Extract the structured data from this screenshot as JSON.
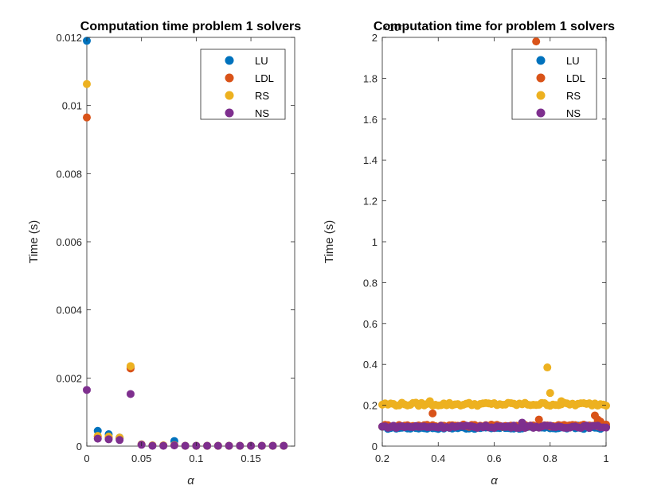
{
  "chart_data": [
    {
      "type": "scatter",
      "title": "Computation time problem 1 solvers",
      "xlabel": "α",
      "ylabel": "Time (s)",
      "xlim": [
        0,
        0.19
      ],
      "ylim": [
        0,
        0.012
      ],
      "xticks": [
        0,
        0.05,
        0.1,
        0.15
      ],
      "xtick_labels": [
        "0",
        "0.05",
        "0.1",
        "0.15"
      ],
      "yticks": [
        0,
        0.002,
        0.004,
        0.006,
        0.008,
        0.01,
        0.012
      ],
      "ytick_labels": [
        "0",
        "0.002",
        "0.004",
        "0.006",
        "0.008",
        "0.01",
        "0.012"
      ],
      "legend_position": "top-right",
      "grid": false,
      "x": [
        0,
        0.01,
        0.02,
        0.03,
        0.04,
        0.05,
        0.06,
        0.07,
        0.08,
        0.09,
        0.1,
        0.11,
        0.12,
        0.13,
        0.14,
        0.15,
        0.16,
        0.17,
        0.18
      ],
      "series": [
        {
          "name": "LU",
          "color": "#0072BD",
          "values": [
            0.0119,
            0.00045,
            0.00035,
            0.00025,
            0.00233,
            5e-05,
            2e-05,
            2e-05,
            0.00015,
            1e-05,
            1e-05,
            1e-05,
            1e-05,
            1e-05,
            1e-05,
            1e-05,
            1e-05,
            1e-05,
            1e-05
          ]
        },
        {
          "name": "LDL",
          "color": "#D95319",
          "values": [
            0.00965,
            0.00028,
            0.00025,
            0.00022,
            0.00228,
            5e-05,
            2e-05,
            2e-05,
            3e-05,
            1e-05,
            1e-05,
            1e-05,
            1e-05,
            1e-05,
            1e-05,
            1e-05,
            1e-05,
            1e-05,
            1e-05
          ]
        },
        {
          "name": "RS",
          "color": "#EDB120",
          "values": [
            0.01063,
            0.0003,
            0.00028,
            0.00025,
            0.00235,
            5e-05,
            2e-05,
            2e-05,
            3e-05,
            1e-05,
            1e-05,
            1e-05,
            1e-05,
            1e-05,
            1e-05,
            1e-05,
            1e-05,
            1e-05,
            1e-05
          ]
        },
        {
          "name": "NS",
          "color": "#7E2F8E",
          "values": [
            0.00165,
            0.00022,
            0.0002,
            0.00018,
            0.00153,
            4e-05,
            1e-05,
            1e-05,
            2e-05,
            1e-05,
            1e-05,
            1e-05,
            1e-05,
            1e-05,
            1e-05,
            1e-05,
            1e-05,
            1e-05,
            1e-05
          ]
        }
      ]
    },
    {
      "type": "scatter",
      "title": "Computation time for problem 1 solvers",
      "xlabel": "α",
      "ylabel": "Time (s)",
      "xlim": [
        0.2,
        1
      ],
      "ylim": [
        0,
        2
      ],
      "y_exponent_label": "×10⁻⁴",
      "xticks": [
        0.2,
        0.4,
        0.6,
        0.8,
        1
      ],
      "xtick_labels": [
        "0.2",
        "0.4",
        "0.6",
        "0.8",
        "1"
      ],
      "yticks": [
        0,
        0.2,
        0.4,
        0.6,
        0.8,
        1,
        1.2,
        1.4,
        1.6,
        1.8,
        2
      ],
      "ytick_labels": [
        "0",
        "0.2",
        "0.4",
        "0.6",
        "0.8",
        "1",
        "1.2",
        "1.4",
        "1.6",
        "1.8",
        "2"
      ],
      "legend_position": "top-right",
      "grid": false,
      "x_range": [
        0.2,
        1.0
      ],
      "x_step": 0.01,
      "series": [
        {
          "name": "LU",
          "color": "#0072BD",
          "baseline": 0.09,
          "jitter": 0.006,
          "outliers": [
            [
              0.7,
              0.11
            ],
            [
              0.9,
              0.1
            ]
          ]
        },
        {
          "name": "LDL",
          "color": "#D95319",
          "baseline": 0.1,
          "jitter": 0.006,
          "outliers": [
            [
              0.38,
              0.16
            ],
            [
              0.75,
              1.98
            ],
            [
              0.76,
              0.13
            ],
            [
              0.96,
              0.15
            ],
            [
              0.97,
              0.13
            ],
            [
              0.98,
              0.12
            ]
          ]
        },
        {
          "name": "RS",
          "color": "#EDB120",
          "baseline": 0.205,
          "jitter": 0.008,
          "outliers": [
            [
              0.79,
              0.385
            ],
            [
              0.8,
              0.26
            ],
            [
              0.37,
              0.22
            ],
            [
              0.84,
              0.22
            ]
          ]
        },
        {
          "name": "NS",
          "color": "#7E2F8E",
          "baseline": 0.095,
          "jitter": 0.006,
          "outliers": [
            [
              0.7,
              0.115
            ]
          ]
        }
      ]
    }
  ]
}
